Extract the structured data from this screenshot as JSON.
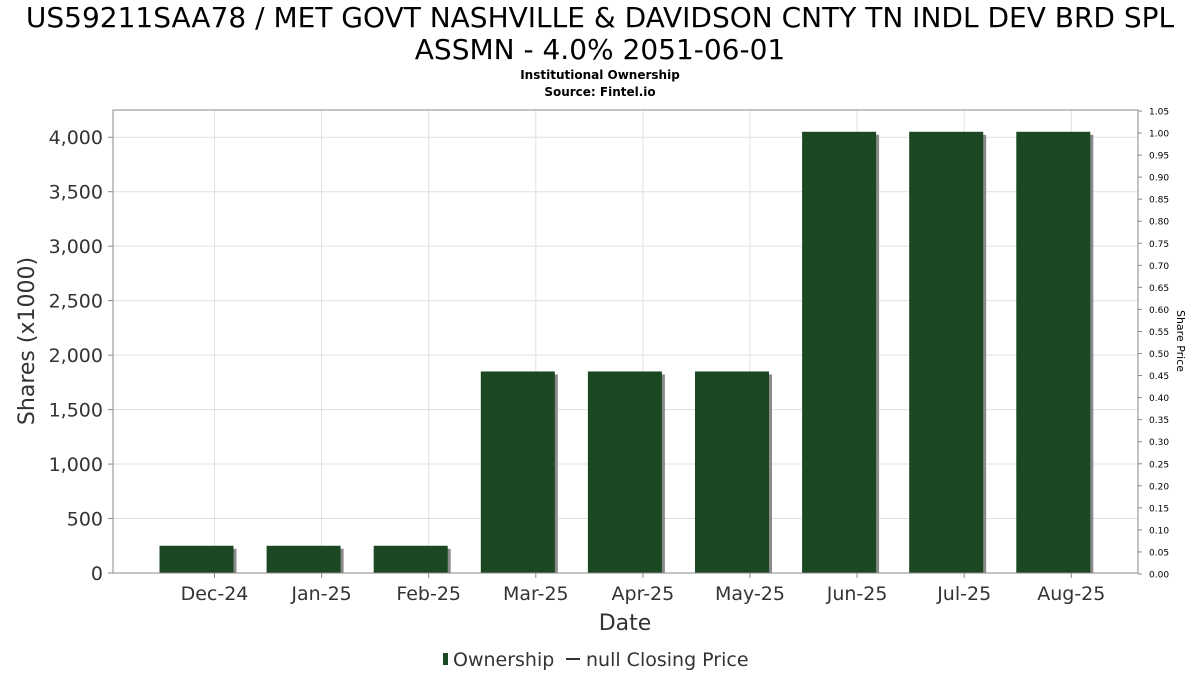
{
  "title_line1": "US59211SAA78 / MET GOVT NASHVILLE & DAVIDSON CNTY TN INDL DEV BRD SPL",
  "title_line2": "ASSMN - 4.0% 2051-06-01",
  "subtitle1": "Institutional Ownership",
  "subtitle2": "Source: Fintel.io",
  "colors": {
    "bar": "#1b4722",
    "bar_shadow": "#8a8a8a",
    "grid": "#e0e0e0",
    "axis": "#888888"
  },
  "chart_data": {
    "type": "bar",
    "categories": [
      "Dec-24",
      "Jan-25",
      "Feb-25",
      "Mar-25",
      "Apr-25",
      "May-25",
      "Jun-25",
      "Jul-25",
      "Aug-25"
    ],
    "series": [
      {
        "name": "Ownership",
        "values": [
          250,
          250,
          250,
          1850,
          1850,
          1850,
          4050,
          4050,
          4050
        ]
      }
    ],
    "xlabel": "Date",
    "ylabel": "Shares (x1000)",
    "ylabel_right": "Share Price",
    "ylim": [
      0,
      4250
    ],
    "yticks": [
      "0",
      "500",
      "1,000",
      "1,500",
      "2,000",
      "2,500",
      "3,000",
      "3,500",
      "4,000"
    ],
    "ylim_right": [
      0,
      1.05
    ],
    "yticks_right": [
      "0.00",
      "0.05",
      "0.10",
      "0.15",
      "0.20",
      "0.25",
      "0.30",
      "0.35",
      "0.40",
      "0.45",
      "0.50",
      "0.55",
      "0.60",
      "0.65",
      "0.70",
      "0.75",
      "0.80",
      "0.85",
      "0.90",
      "0.95",
      "1.00",
      "1.05"
    ],
    "legend": [
      "Ownership",
      "null Closing Price"
    ],
    "legend_position": "bottom",
    "grid": true
  }
}
